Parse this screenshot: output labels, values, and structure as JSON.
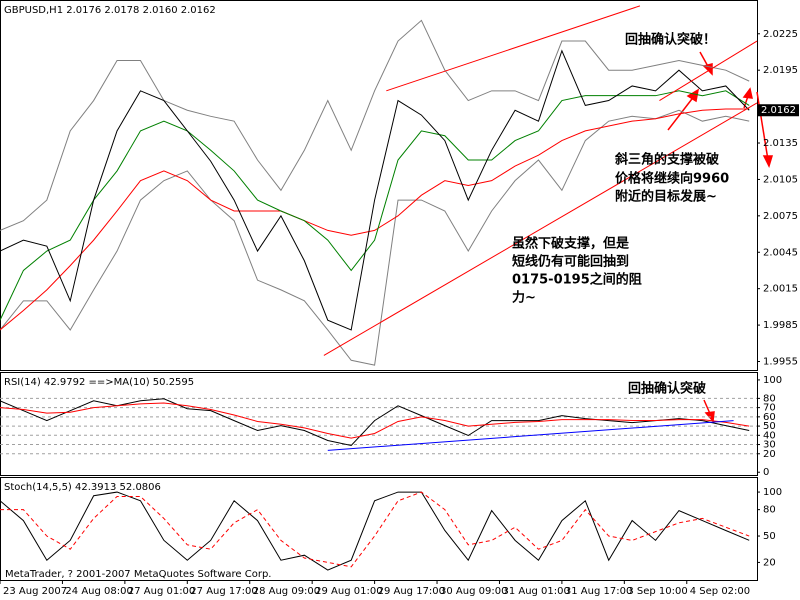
{
  "chart_data": [
    {
      "type": "line",
      "title": "GBPUSD,H1  2.0176 2.0178 2.0160 2.0162",
      "x": [
        0,
        6,
        12,
        18,
        24,
        30,
        36,
        42,
        48,
        54,
        60,
        66,
        72,
        78,
        84,
        90,
        96,
        102,
        108,
        114,
        120,
        126,
        132,
        138,
        144,
        150,
        156,
        162,
        168,
        174,
        180,
        186,
        192
      ],
      "xlim": [
        0,
        194
      ],
      "ylim": [
        1.9948,
        2.0252
      ],
      "yticks": [
        2.0225,
        2.0195,
        2.0135,
        2.0105,
        2.0075,
        2.0045,
        2.0015,
        1.9985,
        1.9955
      ],
      "last_price": 2.0162,
      "series": [
        {
          "color": "#808080",
          "values": [
            2.0063,
            2.0071,
            2.0088,
            2.0145,
            2.017,
            2.0203,
            2.0203,
            2.017,
            2.0162,
            2.0157,
            2.0153,
            2.0121,
            2.0096,
            2.0129,
            2.017,
            2.0129,
            2.0178,
            2.0219,
            2.0236,
            2.0195,
            2.017,
            2.0178,
            2.0178,
            2.017,
            2.0219,
            2.0219,
            2.0195,
            2.0195,
            2.0199,
            2.0203,
            2.0199,
            2.0195,
            2.0186
          ]
        },
        {
          "color": "#808080",
          "values": [
            1.9981,
            2.0005,
            2.0005,
            1.9981,
            2.0014,
            2.0046,
            2.0088,
            2.0104,
            2.0112,
            2.0088,
            2.0071,
            2.0022,
            2.0014,
            2.0005,
            1.9981,
            1.9956,
            1.9952,
            2.0088,
            2.0088,
            2.0079,
            2.0046,
            2.0079,
            2.0104,
            2.0121,
            2.0096,
            2.0137,
            2.0153,
            2.0157,
            2.0155,
            2.0162,
            2.0153,
            2.0157,
            2.0153
          ]
        },
        {
          "color": "#ff0000",
          "values": [
            1.9981,
            1.9997,
            2.0014,
            2.0034,
            2.0055,
            2.0079,
            2.0104,
            2.0112,
            2.0104,
            2.0088,
            2.0079,
            2.0079,
            2.0079,
            2.0071,
            2.0063,
            2.0059,
            2.0063,
            2.0075,
            2.0092,
            2.0104,
            2.01,
            2.0104,
            2.0116,
            2.0125,
            2.0137,
            2.0145,
            2.0149,
            2.0153,
            2.0155,
            2.0159,
            2.0162,
            2.0163,
            2.0163
          ]
        },
        {
          "color": "#008000",
          "values": [
            1.9989,
            2.003,
            2.0046,
            2.0055,
            2.0088,
            2.0112,
            2.0145,
            2.0153,
            2.0145,
            2.0129,
            2.0112,
            2.0088,
            2.0079,
            2.0071,
            2.0055,
            2.003,
            2.0055,
            2.0121,
            2.0145,
            2.0141,
            2.0121,
            2.0121,
            2.0137,
            2.0145,
            2.017,
            2.0174,
            2.0174,
            2.0174,
            2.0174,
            2.0178,
            2.0174,
            2.0178,
            2.0166
          ]
        },
        {
          "color": "#000000",
          "values": [
            2.0046,
            2.0055,
            2.005,
            2.0005,
            2.0088,
            2.0145,
            2.0178,
            2.017,
            2.0145,
            2.012,
            2.0088,
            2.0046,
            2.0075,
            2.0038,
            1.9989,
            1.9981,
            2.0088,
            2.017,
            2.0158,
            2.0137,
            2.0088,
            2.0129,
            2.0162,
            2.0153,
            2.0211,
            2.0166,
            2.017,
            2.0182,
            2.0178,
            2.0195,
            2.0178,
            2.0182,
            2.0162
          ]
        }
      ],
      "trendlines": [
        {
          "color": "#ff0000",
          "x": [
            83,
            194
          ],
          "values": [
            1.996,
            2.0168
          ]
        },
        {
          "color": "#ff0000",
          "x": [
            99,
            164
          ],
          "values": [
            2.0178,
            2.0248
          ]
        },
        {
          "color": "#ff0000",
          "x": [
            169,
            194
          ],
          "values": [
            2.017,
            2.0219
          ]
        }
      ],
      "annotations": [
        "回抽确认突破！",
        "斜三角的支撑被破",
        "价格将继续向9960",
        "附近的目标发展~",
        "虽然下破支撑，但是",
        "短线仍有可能回抽到",
        "0175-0195之间的阻",
        "力~"
      ]
    },
    {
      "type": "line",
      "title": "RSI(14) 42.9792 ==>MA(10) 50.2595",
      "x": [
        0,
        6,
        12,
        18,
        24,
        30,
        36,
        42,
        48,
        54,
        60,
        66,
        72,
        78,
        84,
        90,
        96,
        102,
        108,
        114,
        120,
        126,
        132,
        138,
        144,
        150,
        156,
        162,
        168,
        174,
        180,
        186,
        192
      ],
      "xlim": [
        0,
        194
      ],
      "ylim": [
        -3,
        107.5
      ],
      "yticks": [
        100,
        80,
        70,
        60,
        50,
        40,
        30,
        20,
        0
      ],
      "levels": [
        80,
        70,
        60,
        50,
        40,
        30,
        20
      ],
      "series": [
        {
          "color": "#000000",
          "values": [
            77.4,
            66.7,
            55.9,
            66.7,
            77.4,
            72,
            77.4,
            79.6,
            68.8,
            66.7,
            55.9,
            45.2,
            50.5,
            45.2,
            34.4,
            29,
            55.9,
            72,
            61.3,
            50.5,
            39.8,
            55.9,
            55.9,
            55.9,
            61.3,
            58.1,
            55.9,
            53.8,
            55.9,
            58.1,
            55.9,
            50.5,
            45.2
          ]
        },
        {
          "color": "#ff0000",
          "values": [
            70,
            68,
            64,
            65,
            70,
            72,
            74,
            75,
            72,
            68,
            62,
            55,
            52,
            48,
            42,
            37,
            42,
            55,
            60,
            56,
            50,
            52,
            54,
            55,
            57,
            57,
            57,
            56,
            56,
            57,
            57,
            54,
            50
          ]
        }
      ],
      "trendlines": [
        {
          "color": "#0000ff",
          "x": [
            84,
            188
          ],
          "values": [
            23.7,
            55.9
          ]
        }
      ],
      "annotations": [
        "回抽确认突破"
      ]
    },
    {
      "type": "line",
      "title": "Stoch(14,5,5) 42.3913 52.0806",
      "x": [
        0,
        6,
        12,
        18,
        24,
        30,
        36,
        42,
        48,
        54,
        60,
        66,
        72,
        78,
        84,
        90,
        96,
        102,
        108,
        114,
        120,
        126,
        132,
        138,
        144,
        150,
        156,
        162,
        168,
        174,
        180,
        186,
        192
      ],
      "xlim": [
        0,
        194
      ],
      "ylim": [
        0,
        116
      ],
      "yticks": [
        100,
        80,
        50,
        20
      ],
      "series": [
        {
          "color": "#000000",
          "dash": false,
          "values": [
            90.1,
            67.6,
            22.5,
            45.1,
            95.8,
            100,
            90.1,
            45.1,
            22.5,
            45.1,
            90.1,
            67.6,
            22.5,
            28.2,
            11.3,
            22.5,
            90.1,
            100,
            100,
            56.3,
            22.5,
            78.9,
            45.1,
            22.5,
            67.6,
            90.1,
            22.5,
            67.6,
            45.1,
            78.9,
            67.6,
            56.3,
            45.1
          ]
        },
        {
          "color": "#ff0000",
          "dash": true,
          "values": [
            80,
            80,
            50,
            35,
            70,
            95,
            95,
            70,
            40,
            35,
            65,
            80,
            45,
            25,
            20,
            15,
            50,
            90,
            100,
            80,
            40,
            45,
            60,
            35,
            45,
            80,
            50,
            45,
            55,
            65,
            70,
            60,
            50
          ]
        }
      ],
      "xticks": [
        {
          "value": 0,
          "label": "23 Aug 2007"
        },
        {
          "value": 16,
          "label": "24 Aug 08:00"
        },
        {
          "value": 32,
          "label": "27 Aug 01:00"
        },
        {
          "value": 48,
          "label": "27 Aug 17:00"
        },
        {
          "value": 64,
          "label": "28 Aug 09:00"
        },
        {
          "value": 80,
          "label": "29 Aug 01:00"
        },
        {
          "value": 96,
          "label": "29 Aug 17:00"
        },
        {
          "value": 112,
          "label": "30 Aug 09:00"
        },
        {
          "value": 128,
          "label": "31 Aug 01:00"
        },
        {
          "value": 144,
          "label": "31 Aug 17:00"
        },
        {
          "value": 160,
          "label": "3 Sep 10:00"
        },
        {
          "value": 176,
          "label": "4 Sep 02:00"
        }
      ],
      "footer": "MetaTrader, ? 2001-2007 MetaQuotes Software Corp."
    }
  ]
}
